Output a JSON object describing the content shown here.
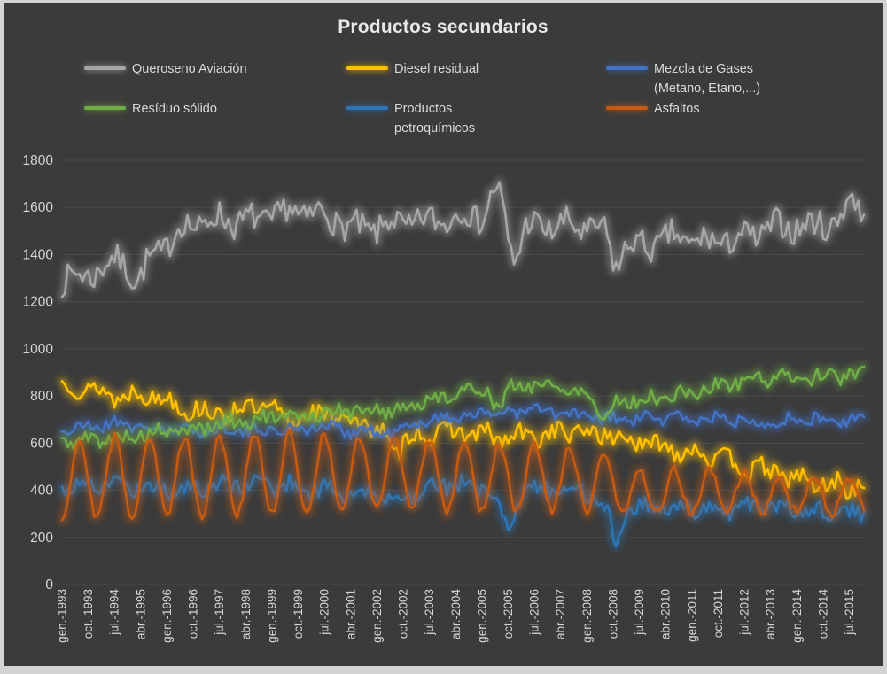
{
  "style": {
    "background": "#3b3b3b",
    "frame": "#d4d4d4",
    "grid": "#4a4a4a",
    "tick_text": "#d6d6d6",
    "title_text": "#e8e8e8",
    "legend_text": "#d9d9d9"
  },
  "chart_data": {
    "type": "line",
    "title": "Productos secundarios",
    "xlabel": "",
    "ylabel": "",
    "ylim": [
      0,
      1800
    ],
    "y_ticks": [
      0,
      200,
      400,
      600,
      800,
      1000,
      1200,
      1400,
      1600,
      1800
    ],
    "grid": true,
    "legend_position": "top",
    "glow_effect": true,
    "x_start_label": "gen.-1993",
    "x_tick_interval_months": 9,
    "n_points": 276,
    "x_tick_labels": [
      "gen.-1993",
      "oct.-1993",
      "jul.-1994",
      "abr.-1995",
      "gen.-1996",
      "oct.-1996",
      "jul.-1997",
      "abr.-1998",
      "gen.-1999",
      "oct.-1999",
      "jul.-2000",
      "abr.-2001",
      "gen.-2002",
      "oct.-2002",
      "jul.-2003",
      "abr.-2004",
      "gen.-2005",
      "oct.-2005",
      "jul.-2006",
      "abr.-2007",
      "gen.-2008",
      "oct.-2008",
      "jul.-2009",
      "abr.-2010",
      "gen.-2011",
      "oct.-2011",
      "jul.-2012",
      "abr.-2013",
      "gen.-2014",
      "oct.-2014",
      "jul.-2015"
    ],
    "anchor_years": [
      1993,
      1994,
      1995,
      1996,
      1997,
      1998,
      1999,
      2000,
      2001,
      2002,
      2003,
      2004,
      2005,
      2006,
      2007,
      2008,
      2009,
      2010,
      2011,
      2012,
      2013,
      2014,
      2015
    ],
    "series": [
      {
        "id": "queroseno-aviacion",
        "name": "Queroseno Aviación",
        "legend_lines": [
          "Queroseno Aviación"
        ],
        "color": "#a6a6a6",
        "trend_by_year": [
          1300,
          1370,
          1380,
          1520,
          1550,
          1540,
          1580,
          1570,
          1500,
          1530,
          1540,
          1570,
          1560,
          1520,
          1520,
          1500,
          1430,
          1470,
          1450,
          1470,
          1520,
          1520,
          1560
        ],
        "seasonal_amplitude": 25,
        "phase": 2,
        "noise": 60,
        "seed": 7,
        "events": [
          {
            "i": 26,
            "d": -90
          },
          {
            "i": 149,
            "d": 110
          },
          {
            "i": 155,
            "d": -150
          },
          {
            "i": 190,
            "d": -110
          },
          {
            "i": 271,
            "d": 80
          }
        ]
      },
      {
        "id": "diesel-residual",
        "name": "Diesel residual",
        "legend_lines": [
          "Diesel residual"
        ],
        "color": "#ffc000",
        "trend_by_year": [
          840,
          800,
          810,
          750,
          720,
          760,
          700,
          730,
          690,
          620,
          640,
          650,
          620,
          630,
          650,
          640,
          600,
          580,
          550,
          500,
          470,
          430,
          415
        ],
        "seasonal_amplitude": 20,
        "phase": 10,
        "noise": 42,
        "seed": 13,
        "events": [
          {
            "i": 114,
            "d": -60
          }
        ]
      },
      {
        "id": "mezcla-de-gases",
        "name": "Mezcla de Gases (Metano, Etano,...)",
        "legend_lines": [
          "Mezcla de Gases",
          "(Metano, Etano,...)"
        ],
        "color": "#4472c4",
        "trend_by_year": [
          660,
          690,
          660,
          650,
          660,
          650,
          660,
          670,
          650,
          640,
          700,
          720,
          730,
          740,
          720,
          700,
          700,
          710,
          700,
          700,
          690,
          700,
          690
        ],
        "seasonal_amplitude": 12,
        "phase": 5,
        "noise": 28,
        "seed": 21,
        "events": []
      },
      {
        "id": "residuo-solido",
        "name": "Resíduo sólido",
        "legend_lines": [
          "Resíduo sólido"
        ],
        "color": "#70ad47",
        "trend_by_year": [
          610,
          620,
          640,
          650,
          680,
          700,
          710,
          730,
          740,
          740,
          780,
          820,
          840,
          850,
          830,
          790,
          780,
          800,
          830,
          870,
          880,
          880,
          890
        ],
        "seasonal_amplitude": 12,
        "phase": 6,
        "noise": 30,
        "seed": 5,
        "events": [
          {
            "i": 150,
            "d": -90
          },
          {
            "i": 186,
            "d": -90
          }
        ]
      },
      {
        "id": "productos-petroquimicos",
        "name": "Productos petroquímicos",
        "legend_lines": [
          "Productos",
          "petroquímicos"
        ],
        "color": "#2e75b6",
        "trend_by_year": [
          420,
          430,
          410,
          400,
          420,
          430,
          420,
          400,
          380,
          360,
          420,
          430,
          380,
          400,
          420,
          350,
          320,
          330,
          320,
          330,
          330,
          310,
          300
        ],
        "seasonal_amplitude": 18,
        "phase": 4,
        "noise": 35,
        "seed": 17,
        "events": [
          {
            "i": 153,
            "d": -130
          },
          {
            "i": 190,
            "d": -150
          }
        ]
      },
      {
        "id": "asfaltos",
        "name": "Asfaltos",
        "legend_lines": [
          "Asfaltos"
        ],
        "color": "#c55a11",
        "trend_by_year": [
          450,
          455,
          460,
          460,
          460,
          465,
          470,
          470,
          465,
          480,
          470,
          460,
          450,
          450,
          445,
          430,
          390,
          390,
          395,
          390,
          385,
          380,
          375
        ],
        "seasonal_amplitude": [
          165,
          170,
          170,
          170,
          170,
          170,
          170,
          165,
          160,
          155,
          150,
          150,
          150,
          145,
          140,
          130,
          95,
          95,
          90,
          85,
          80,
          75,
          70
        ],
        "phase": 3,
        "noise": 20,
        "seed": 29,
        "events": []
      }
    ]
  }
}
